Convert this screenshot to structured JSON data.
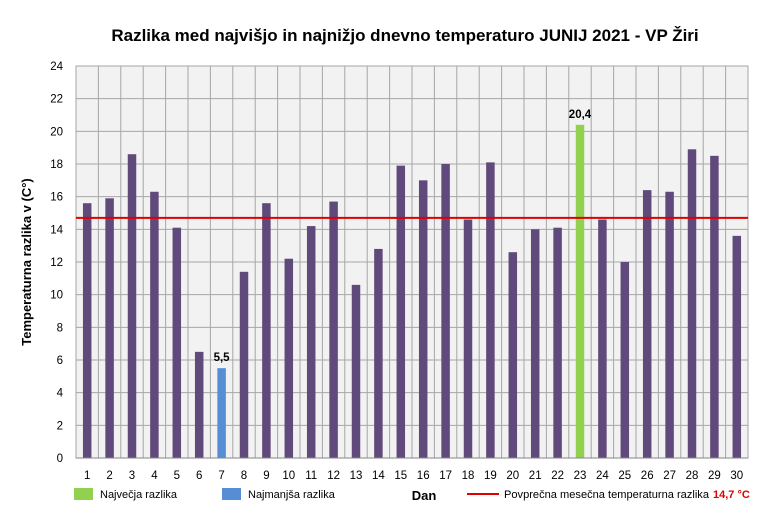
{
  "chart_data": {
    "type": "bar",
    "title": "Razlika med najvišjo  in najnižjo  dnevno  temperaturo  JUNIJ 2021 - VP Žiri",
    "xlabel": "Dan",
    "ylabel": "Temperaturna razlika v (C°)",
    "ylim": [
      0,
      24
    ],
    "ytick_step": 2,
    "ytick_labels": [
      "0",
      "2",
      "4",
      "6",
      "8",
      "10",
      "12",
      "14",
      "16",
      "18",
      "20",
      "22",
      "24"
    ],
    "grid": true,
    "categories": [
      "1",
      "2",
      "3",
      "4",
      "5",
      "6",
      "7",
      "8",
      "9",
      "10",
      "11",
      "12",
      "13",
      "14",
      "15",
      "16",
      "17",
      "18",
      "19",
      "20",
      "21",
      "22",
      "23",
      "24",
      "25",
      "26",
      "27",
      "28",
      "29",
      "30"
    ],
    "values": [
      15.6,
      15.9,
      18.6,
      16.3,
      14.1,
      6.5,
      5.5,
      11.4,
      15.6,
      12.2,
      14.2,
      15.7,
      10.6,
      12.8,
      17.9,
      17.0,
      18.0,
      14.6,
      18.1,
      12.6,
      14.0,
      14.1,
      20.4,
      14.6,
      12.0,
      16.4,
      16.3,
      18.9,
      18.5,
      13.6
    ],
    "max_index": 22,
    "min_index": 6,
    "max_label": "20,4",
    "min_label": "5,5",
    "average": 14.7,
    "average_label": "14,7 °C",
    "legend": {
      "max": "Največja razlika",
      "min": "Najmanjša razlika",
      "average": "Povprečna mesečna temperaturna razlika"
    },
    "colors": {
      "bar": "#604a7b",
      "max": "#92d050",
      "min": "#558ed5",
      "average": "#e00000",
      "grid": "#a6a6a6",
      "plot_bg": "#f2f2f2"
    }
  }
}
